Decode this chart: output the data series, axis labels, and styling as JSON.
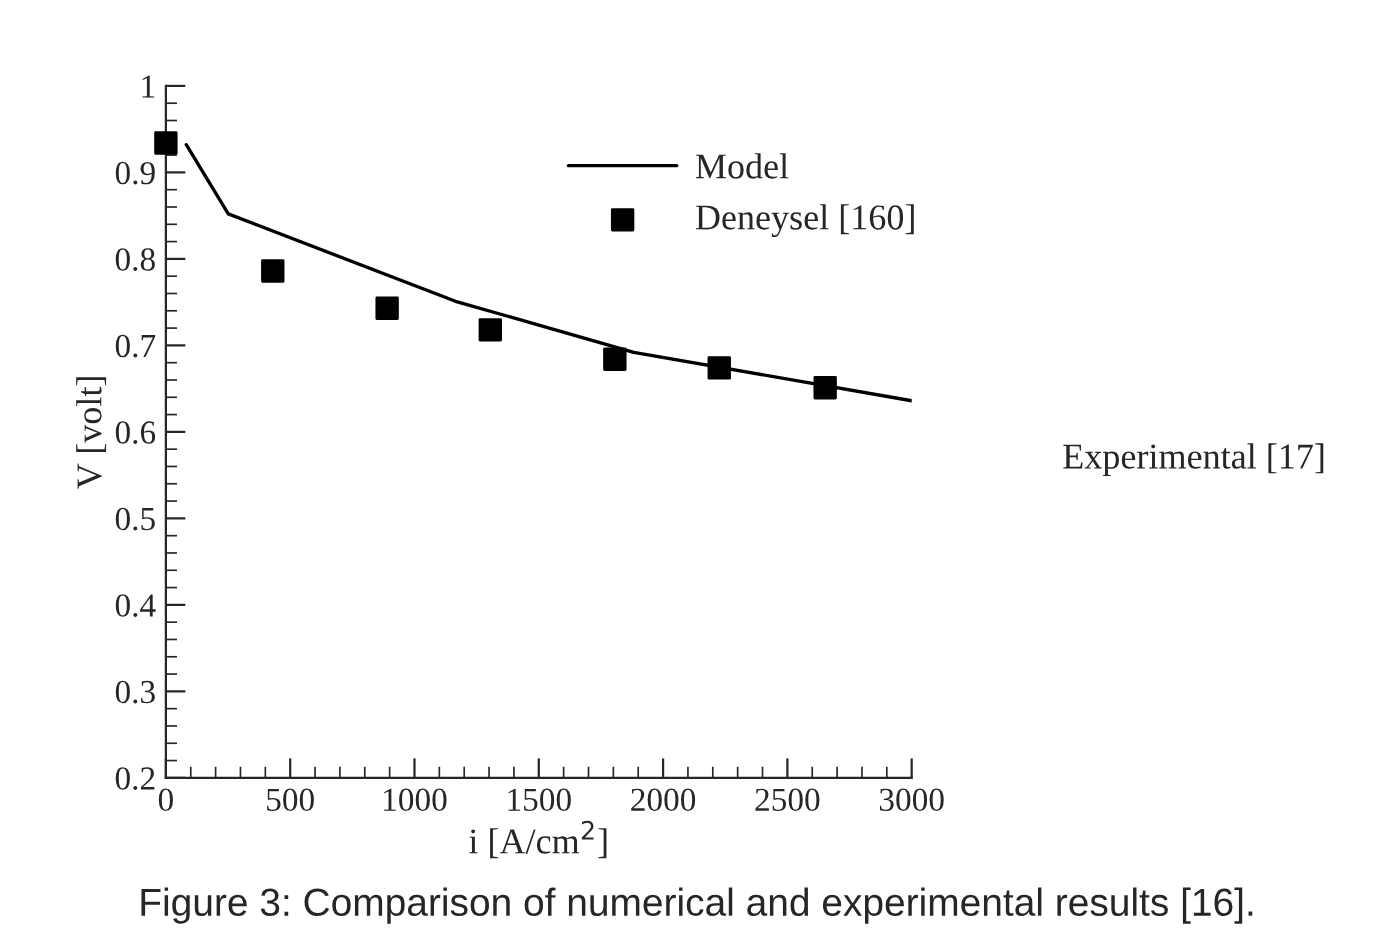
{
  "chart_data": {
    "type": "scatter",
    "xlabel": "i [A/cm$^{2}$]",
    "ylabel": "V [volt]",
    "xlim": [
      0,
      3000
    ],
    "ylim": [
      0.2,
      1
    ],
    "xticks": [
      0,
      500,
      1000,
      1500,
      2000,
      2500,
      3000
    ],
    "yticks": [
      0.2,
      0.3,
      0.4,
      0.5,
      0.6,
      0.7,
      0.8,
      0.9,
      1
    ],
    "series": [
      {
        "name": "Model",
        "type": "line",
        "color": "#000000",
        "marker": "none",
        "line_style": "solid",
        "x": [
          82,
          251,
          1165,
          1882,
          3000
        ],
        "values": [
          0.932,
          0.852,
          0.751,
          0.692,
          0.636
        ]
      },
      {
        "name": "Deneysel [160]",
        "color": "#000000",
        "marker": "square",
        "x": [
          0,
          430,
          890,
          1305,
          1806,
          2226,
          2652
        ],
        "values": [
          0.934,
          0.786,
          0.743,
          0.718,
          0.684,
          0.674,
          0.651
        ]
      }
    ],
    "legend": "top right",
    "grid": false,
    "annotations": [
      "Experimental [17]",
      "Figure 3: Comparison of numerical and experimental results [16]."
    ]
  }
}
